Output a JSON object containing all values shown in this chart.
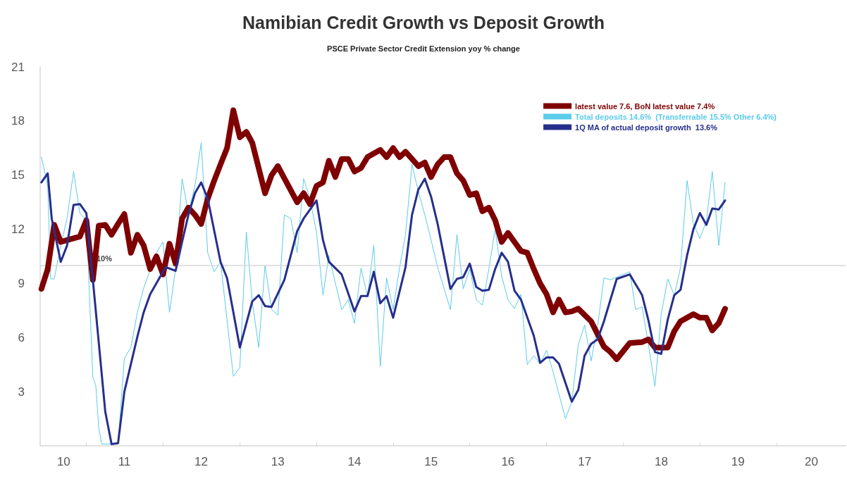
{
  "chart_data": {
    "type": "line",
    "title": "Namibian Credit Growth vs Deposit Growth",
    "subtitle": "PSCE Private Sector Credit Extension yoy % change",
    "xlim": [
      "2010-05-26",
      "2020-11-25"
    ],
    "xticks": [
      {
        "value": "2010-09-15",
        "label": "10"
      },
      {
        "value": "2011-01-01",
        "label": null
      },
      {
        "value": "2011-07-01",
        "label": "11"
      },
      {
        "value": "2012-01-01",
        "label": null
      },
      {
        "value": "2012-07-01",
        "label": "12"
      },
      {
        "value": "2013-01-01",
        "label": null
      },
      {
        "value": "2013-07-01",
        "label": "13"
      },
      {
        "value": "2014-01-01",
        "label": null
      },
      {
        "value": "2014-07-01",
        "label": "14"
      },
      {
        "value": "2015-01-01",
        "label": null
      },
      {
        "value": "2015-07-01",
        "label": "15"
      },
      {
        "value": "2016-01-01",
        "label": null
      },
      {
        "value": "2016-07-01",
        "label": "16"
      },
      {
        "value": "2017-01-01",
        "label": null
      },
      {
        "value": "2017-07-01",
        "label": "17"
      },
      {
        "value": "2018-01-01",
        "label": null
      },
      {
        "value": "2018-07-01",
        "label": "18"
      },
      {
        "value": "2019-01-01",
        "label": null
      },
      {
        "value": "2019-07-01",
        "label": "19"
      },
      {
        "value": "2020-01-01",
        "label": null
      },
      {
        "value": "2020-06-15",
        "label": "20"
      }
    ],
    "ylim": [
      0,
      21
    ],
    "yticks": [
      3,
      6,
      9,
      12,
      15,
      18,
      21
    ],
    "grid": false,
    "legend": "top right",
    "ref_lines": [
      {
        "axis": "y",
        "value": 10,
        "label": "10%",
        "color": "#d9d9d9"
      }
    ],
    "series": [
      {
        "name": "latest value 7.6, BoN latest value 7.4%",
        "color": "#7f0000",
        "x": [
          "2010-06",
          "2010-07",
          "2010-08",
          "2010-09",
          "2010-10",
          "2010-12",
          "2011-01",
          "2011-02",
          "2011-03",
          "2011-04",
          "2011-05",
          "2011-06",
          "2011-07",
          "2011-08",
          "2011-09",
          "2011-10",
          "2011-11",
          "2011-12",
          "2012-01",
          "2012-02",
          "2012-03",
          "2012-04",
          "2012-05",
          "2012-06",
          "2012-07",
          "2012-08",
          "2012-09",
          "2012-10",
          "2012-11",
          "2012-12",
          "2013-01",
          "2013-02",
          "2013-03",
          "2013-05",
          "2013-06",
          "2013-07",
          "2013-10",
          "2013-11",
          "2013-12",
          "2014-01",
          "2014-02",
          "2014-03",
          "2014-04",
          "2014-05",
          "2014-06",
          "2014-07",
          "2014-08",
          "2014-09",
          "2014-11",
          "2014-12",
          "2015-01",
          "2015-02",
          "2015-03",
          "2015-04",
          "2015-05",
          "2015-06",
          "2015-07",
          "2015-08",
          "2015-09",
          "2015-10",
          "2015-11",
          "2015-12",
          "2016-01",
          "2016-02",
          "2016-03",
          "2016-04",
          "2016-05",
          "2016-06",
          "2016-07",
          "2016-08",
          "2016-09",
          "2016-10",
          "2016-11",
          "2016-12",
          "2017-01",
          "2017-02",
          "2017-03",
          "2017-04",
          "2017-05",
          "2017-06",
          "2017-08",
          "2017-10",
          "2017-11",
          "2017-12",
          "2018-02",
          "2018-04",
          "2018-05",
          "2018-06",
          "2018-08",
          "2018-09",
          "2018-10",
          "2018-12",
          "2019-01",
          "2019-02",
          "2019-03",
          "2019-04",
          "2019-05"
        ],
        "values": [
          8.7,
          9.8,
          12.25,
          11.3,
          11.4,
          11.6,
          12.5,
          9.2,
          12.2,
          12.25,
          11.7,
          12.3,
          12.85,
          10.7,
          11.7,
          11.1,
          9.8,
          10.5,
          9.5,
          11.2,
          10.1,
          12.6,
          13.2,
          12.8,
          12.3,
          13.7,
          14.7,
          15.6,
          16.5,
          18.6,
          17.1,
          17.4,
          16.8,
          14,
          15,
          15.5,
          13.5,
          14,
          13.4,
          14.4,
          14.6,
          15.8,
          14.9,
          15.9,
          15.9,
          15.2,
          15.4,
          16,
          16.4,
          16,
          16.5,
          16,
          16.3,
          15.9,
          15.5,
          15.7,
          14.9,
          15.6,
          16,
          16,
          15.1,
          14.7,
          13.9,
          14,
          13,
          13.2,
          12.5,
          11.3,
          11.8,
          11.3,
          10.8,
          10.7,
          9.8,
          9,
          8.4,
          7.4,
          8.1,
          7.4,
          7.45,
          7.6,
          6.9,
          5.5,
          5.2,
          4.8,
          5.7,
          5.75,
          5.9,
          5.45,
          5.45,
          6.35,
          6.9,
          7.3,
          7.1,
          7.1,
          6.4,
          6.8,
          7.6
        ]
      },
      {
        "name": "Total deposits 14.6%  (Transferrable 15.5% Other 6.4%)",
        "color": "#5ccbeb",
        "x": [
          "2010-06-01",
          "2010-07-01",
          "2010-07-15",
          "2010-08-01",
          "2010-09-01",
          "2010-10-01",
          "2010-11-01",
          "2010-12-01",
          "2011-01-01",
          "2011-02-01",
          "2011-02-15",
          "2011-03-01",
          "2011-03-15",
          "2011-06-01",
          "2011-07-01",
          "2011-08-01",
          "2011-09-01",
          "2011-10-01",
          "2011-12-01",
          "2012-01-01",
          "2012-02-01",
          "2012-03-01",
          "2012-04-01",
          "2012-05-01",
          "2012-06-01",
          "2012-07-01",
          "2012-08-01",
          "2012-09-01",
          "2012-10-01",
          "2012-12-01",
          "2013-01-01",
          "2013-02-01",
          "2013-03-01",
          "2013-04-01",
          "2013-05-01",
          "2013-06-01",
          "2013-07-01",
          "2013-08-01",
          "2013-09-01",
          "2013-10-01",
          "2013-11-01",
          "2013-12-01",
          "2014-01-01",
          "2014-02-01",
          "2014-03-01",
          "2014-05-01",
          "2014-06-01",
          "2014-07-01",
          "2014-08-01",
          "2014-09-01",
          "2014-10-01",
          "2014-11-01",
          "2014-12-01",
          "2015-01-01",
          "2015-02-01",
          "2015-03-01",
          "2015-04-01",
          "2015-05-01",
          "2015-06-01",
          "2015-07-01",
          "2015-08-01",
          "2015-10-01",
          "2015-11-01",
          "2015-12-01",
          "2016-01-01",
          "2016-02-01",
          "2016-03-01",
          "2016-04-01",
          "2016-05-01",
          "2016-06-01",
          "2016-07-01",
          "2016-08-01",
          "2016-09-01",
          "2016-10-01",
          "2016-11-01",
          "2016-12-01",
          "2017-01-01",
          "2017-02-01",
          "2017-04-01",
          "2017-05-01",
          "2017-06-01",
          "2017-07-01",
          "2017-08-01",
          "2017-09-01",
          "2017-10-01",
          "2017-11-01",
          "2018-02-01",
          "2018-03-01",
          "2018-04-01",
          "2018-05-01",
          "2018-06-01",
          "2018-07-01",
          "2018-08-01",
          "2018-09-01",
          "2018-10-01",
          "2018-11-01",
          "2018-12-01",
          "2019-01-01",
          "2019-02-01",
          "2019-03-01",
          "2019-04-01",
          "2019-05-01"
        ],
        "values": [
          16,
          14.4,
          9.25,
          9.25,
          11.1,
          12.6,
          15.2,
          12.9,
          12.5,
          3.8,
          3.35,
          1,
          0.1,
          0.1,
          4.85,
          5.45,
          7.4,
          8.75,
          10.7,
          11.3,
          7.4,
          9.8,
          14.8,
          12.9,
          14.4,
          16.8,
          10.7,
          9.65,
          10.2,
          3.85,
          4.35,
          11.85,
          8,
          5.45,
          10,
          7.55,
          7.25,
          12.8,
          12.6,
          10.7,
          14.8,
          13.7,
          11.85,
          8.35,
          10.55,
          7.55,
          8.1,
          6.8,
          9.85,
          8.3,
          11.1,
          4.4,
          9.3,
          7.55,
          9.9,
          11.7,
          15.6,
          14.1,
          12.8,
          11.4,
          9.9,
          7.55,
          11.7,
          8.7,
          9.8,
          8.1,
          7.8,
          9.8,
          12,
          9.4,
          8.1,
          7.6,
          8.4,
          4.5,
          5,
          4.55,
          5.3,
          4.1,
          1.5,
          2.45,
          5.6,
          6.7,
          4.7,
          6.65,
          9.3,
          9.2,
          9.65,
          7.55,
          7.7,
          5.6,
          3.3,
          7.3,
          9.25,
          8.35,
          9.9,
          14.7,
          12.3,
          11.5,
          12.45,
          15.2,
          11.1,
          14.6
        ]
      },
      {
        "name": "1Q MA of actual deposit growth  13.6%",
        "color": "#262f8c",
        "x": [
          "2010-06-01",
          "2010-07-01",
          "2010-07-20",
          "2010-09-01",
          "2010-10-01",
          "2010-11-01",
          "2010-12-01",
          "2011-01-01",
          "2011-02-01",
          "2011-04-01",
          "2011-05-01",
          "2011-06-01",
          "2011-07-01",
          "2011-09-01",
          "2011-10-01",
          "2011-11-01",
          "2012-01-01",
          "2012-01-15",
          "2012-03-01",
          "2012-04-01",
          "2012-05-01",
          "2012-06-01",
          "2012-07-01",
          "2012-08-01",
          "2012-10-01",
          "2012-11-01",
          "2013-01-01",
          "2013-03-01",
          "2013-04-01",
          "2013-05-01",
          "2013-06-01",
          "2013-08-01",
          "2013-10-01",
          "2013-11-01",
          "2014-01-01",
          "2014-02-01",
          "2014-03-01",
          "2014-05-01",
          "2014-07-01",
          "2014-08-01",
          "2014-09-01",
          "2014-10-01",
          "2014-11-01",
          "2014-12-01",
          "2015-01-01",
          "2015-03-01",
          "2015-04-01",
          "2015-05-01",
          "2015-06-01",
          "2015-07-01",
          "2015-08-01",
          "2015-10-01",
          "2015-11-01",
          "2015-12-01",
          "2016-01-01",
          "2016-02-01",
          "2016-03-01",
          "2016-04-01",
          "2016-05-01",
          "2016-06-01",
          "2016-07-01",
          "2016-08-01",
          "2016-09-01",
          "2016-11-01",
          "2016-12-01",
          "2017-01-01",
          "2017-02-01",
          "2017-03-01",
          "2017-05-01",
          "2017-06-01",
          "2017-07-01",
          "2017-08-01",
          "2017-09-01",
          "2017-10-01",
          "2017-11-01",
          "2017-12-01",
          "2018-02-01",
          "2018-04-01",
          "2018-05-01",
          "2018-06-01",
          "2018-07-01",
          "2018-08-01",
          "2018-09-01",
          "2018-10-01",
          "2018-11-01",
          "2018-12-01",
          "2019-01-01",
          "2019-02-01",
          "2019-03-01",
          "2019-04-01",
          "2019-05-01"
        ],
        "values": [
          14.6,
          15.1,
          12.6,
          10.2,
          11.1,
          13.35,
          13.4,
          12.9,
          9.2,
          1.9,
          0.1,
          0.15,
          3,
          6.05,
          7.4,
          8.4,
          9.65,
          9.9,
          9.7,
          11.3,
          12.8,
          14,
          14.6,
          13.7,
          10.2,
          9.3,
          5.45,
          8,
          8.35,
          7.75,
          7.7,
          9.2,
          11.9,
          12.6,
          13.6,
          11.4,
          10.2,
          9.5,
          7.45,
          8.3,
          8.3,
          9.65,
          7.9,
          8.3,
          7.1,
          9.9,
          12.8,
          14.2,
          14.8,
          13.8,
          12.3,
          8.7,
          9.25,
          9.35,
          10.1,
          8.8,
          8.6,
          8.65,
          9.8,
          10.7,
          10.2,
          8.6,
          8.1,
          6.1,
          4.6,
          4.9,
          4.9,
          4.55,
          2.45,
          3.1,
          5,
          5.65,
          5.9,
          6.9,
          8.1,
          9.25,
          9.5,
          8.35,
          6.95,
          5.2,
          5.1,
          7,
          8.35,
          8.65,
          10.55,
          12,
          12.9,
          12.25,
          13.15,
          13.1,
          13.6
        ]
      }
    ]
  }
}
